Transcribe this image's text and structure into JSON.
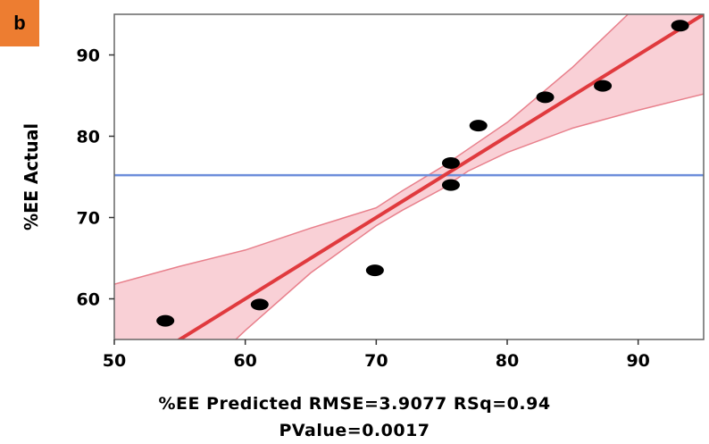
{
  "panel_label": "b",
  "colors": {
    "badge": "#ED7D31",
    "fit_line": "#E03A3E",
    "confidence_band": "#F9D0D6",
    "confidence_edge": "#E8808C",
    "mean_line": "#6D8EDB",
    "points": "#000000"
  },
  "chart_data": {
    "type": "scatter",
    "title": "",
    "xlabel": "%EE Predicted RMSE=3.9077 RSq=0.94",
    "xlabel_line2": "PValue=0.0017",
    "ylabel": "%EE Actual",
    "xlim": [
      50,
      95
    ],
    "ylim": [
      55,
      95
    ],
    "xticks": [
      50,
      60,
      70,
      80,
      90
    ],
    "yticks": [
      60,
      70,
      80,
      90
    ],
    "points": [
      {
        "x": 53.9,
        "y": 57.3
      },
      {
        "x": 61.1,
        "y": 59.3
      },
      {
        "x": 69.9,
        "y": 63.5
      },
      {
        "x": 75.7,
        "y": 74.0
      },
      {
        "x": 75.7,
        "y": 76.7
      },
      {
        "x": 77.8,
        "y": 81.3
      },
      {
        "x": 82.9,
        "y": 84.8
      },
      {
        "x": 87.3,
        "y": 86.2
      },
      {
        "x": 93.2,
        "y": 93.6
      }
    ],
    "fit_line": {
      "slope": 1.0,
      "intercept": 0.0
    },
    "mean_y": 75.2,
    "confidence_band": {
      "x": [
        50,
        55,
        60,
        65,
        70,
        72,
        75,
        77,
        80,
        85,
        90,
        95
      ],
      "lower": [
        40.8,
        48.5,
        56.1,
        63.2,
        69.0,
        70.9,
        73.5,
        75.7,
        78.0,
        81.0,
        83.2,
        85.2
      ],
      "upper": [
        61.8,
        64.0,
        66.0,
        68.7,
        71.2,
        73.3,
        76.2,
        78.4,
        81.7,
        88.5,
        96.2,
        103.6
      ]
    },
    "grid": false,
    "legend": "none"
  }
}
